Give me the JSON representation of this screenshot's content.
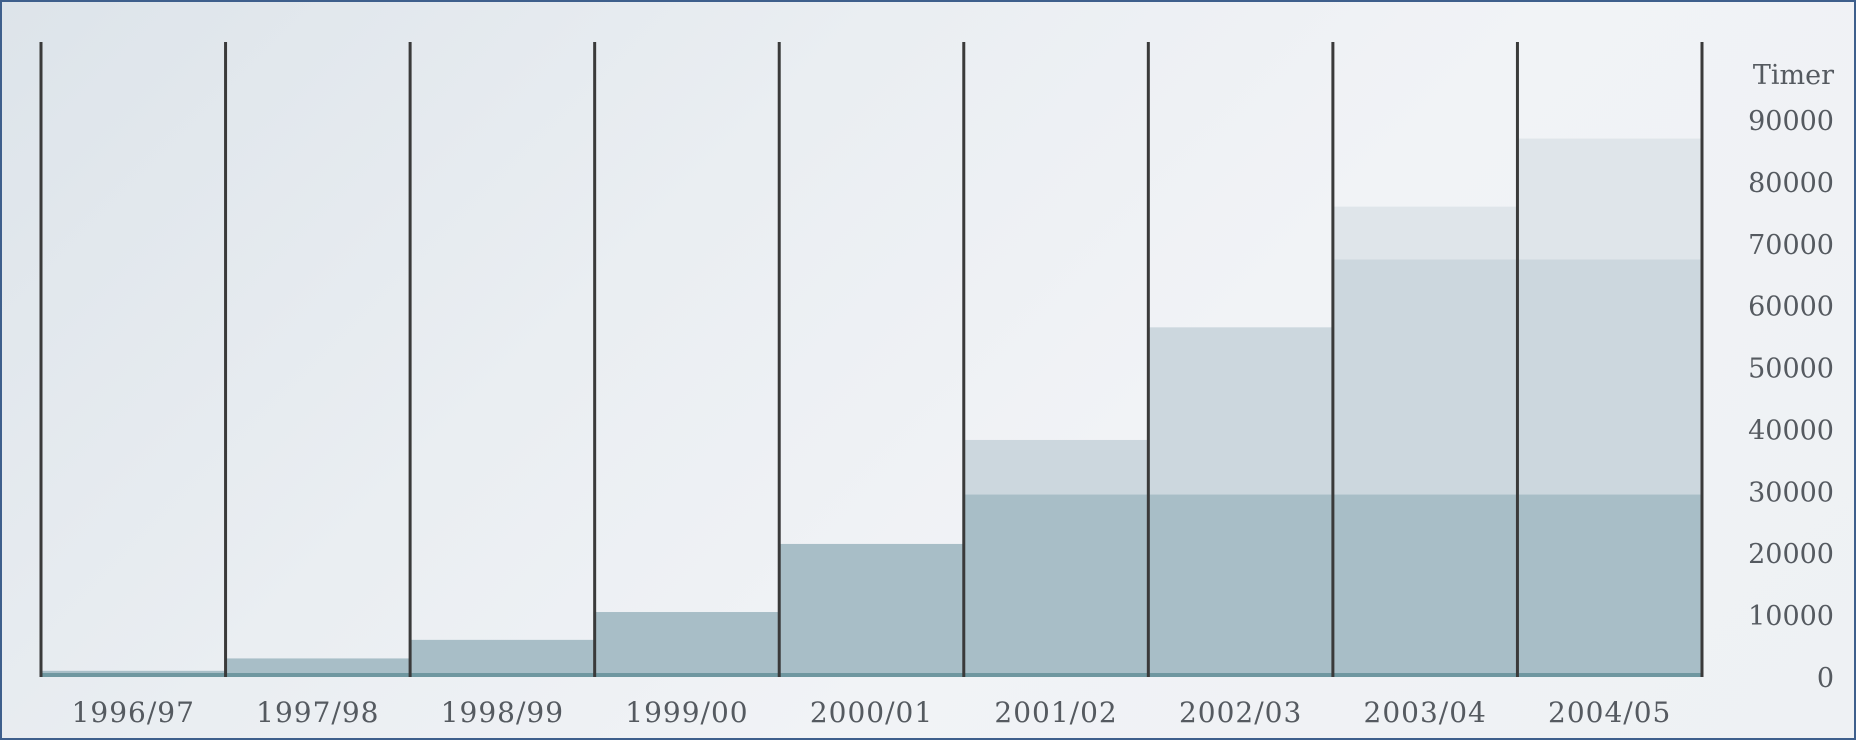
{
  "chart_data": {
    "type": "bar",
    "stacked": true,
    "categories": [
      "1996/97",
      "1997/98",
      "1998/99",
      "1999/00",
      "2000/01",
      "2001/02",
      "2002/03",
      "2003/04",
      "2004/05"
    ],
    "series": [
      {
        "values": [
          1000,
          3000,
          6000,
          10500,
          21500,
          29500,
          29500,
          29500,
          29500
        ],
        "color": "#a8bec7"
      },
      {
        "values": [
          0,
          0,
          0,
          0,
          0,
          8800,
          27000,
          38000,
          38000
        ],
        "color": "#ccd7de"
      },
      {
        "values": [
          0,
          0,
          0,
          0,
          0,
          0,
          0,
          8500,
          19500
        ],
        "color": "#dfe5ea"
      }
    ],
    "ylabel": "Timer",
    "ylim": [
      0,
      90000
    ],
    "yticks": [
      0,
      10000,
      20000,
      30000,
      40000,
      50000,
      60000,
      70000,
      80000,
      90000
    ],
    "grid": false,
    "yaxis_position": "right",
    "background_color": "#eef1f4",
    "border_color": "#3e5f8c",
    "divider_color": "#3a3a3a"
  }
}
